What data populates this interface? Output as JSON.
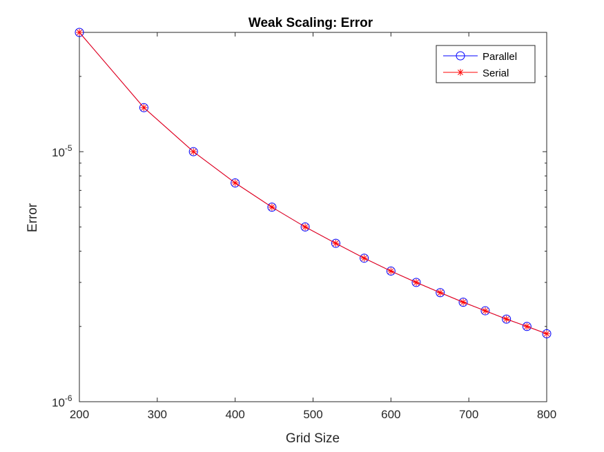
{
  "chart_data": {
    "type": "line",
    "title": "Weak Scaling: Error",
    "xlabel": "Grid Size",
    "ylabel": "Error",
    "xlim": [
      200,
      800
    ],
    "ylim": [
      1e-06,
      3e-05
    ],
    "yscale": "log",
    "grid": false,
    "legend_position": "top-right",
    "x_ticks": [
      {
        "value": 200,
        "label": "200"
      },
      {
        "value": 300,
        "label": "300"
      },
      {
        "value": 400,
        "label": "400"
      },
      {
        "value": 500,
        "label": "500"
      },
      {
        "value": 600,
        "label": "600"
      },
      {
        "value": 700,
        "label": "700"
      },
      {
        "value": 800,
        "label": "800"
      }
    ],
    "y_ticks": [
      {
        "value": 1e-06,
        "base": "10",
        "exp": "-6"
      },
      {
        "value": 1e-05,
        "base": "10",
        "exp": "-5"
      }
    ],
    "x": [
      200,
      282.8,
      346.4,
      400,
      447.2,
      489.9,
      529.2,
      565.7,
      600,
      632.5,
      663.3,
      692.8,
      721.1,
      748.3,
      774.6,
      800
    ],
    "series": [
      {
        "name": "Parallel",
        "color": "#0000ff",
        "marker": "circle",
        "values": [
          3e-05,
          1.5e-05,
          1e-05,
          7.5e-06,
          6e-06,
          5e-06,
          4.3e-06,
          3.75e-06,
          3.33e-06,
          3e-06,
          2.73e-06,
          2.5e-06,
          2.31e-06,
          2.14e-06,
          2e-06,
          1.87e-06
        ]
      },
      {
        "name": "Serial",
        "color": "#ff0000",
        "marker": "asterisk",
        "values": [
          3e-05,
          1.5e-05,
          1e-05,
          7.5e-06,
          6e-06,
          5e-06,
          4.3e-06,
          3.75e-06,
          3.33e-06,
          3e-06,
          2.73e-06,
          2.5e-06,
          2.31e-06,
          2.14e-06,
          2e-06,
          1.87e-06
        ]
      }
    ]
  }
}
